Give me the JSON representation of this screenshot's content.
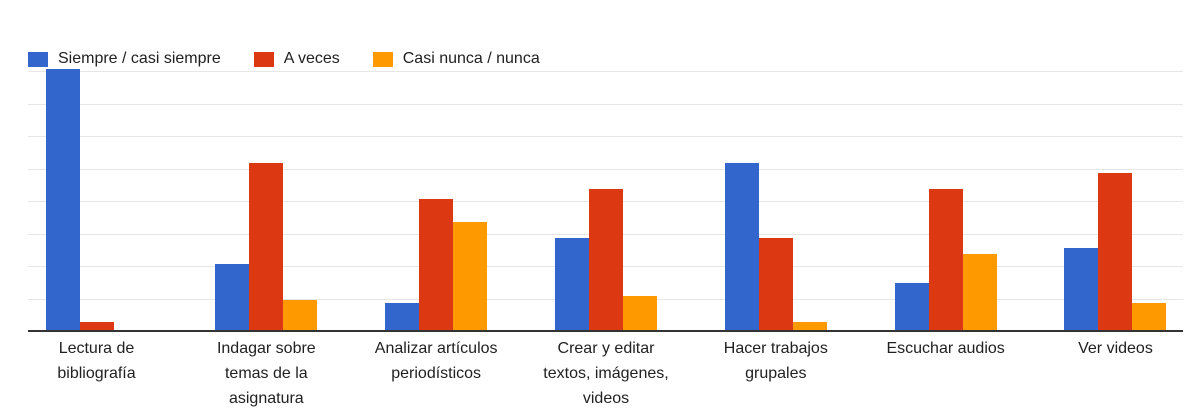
{
  "chart_data": {
    "type": "bar",
    "title": "",
    "xlabel": "",
    "ylabel": "",
    "ylim": [
      0,
      90
    ],
    "gridline_step": 10,
    "grid": true,
    "legend_position": "top-left",
    "background": "#ffffff",
    "gridline_color": "#e6e6e6",
    "axis_color": "#333333",
    "text_color": "#212121",
    "categories": [
      "Lectura de bibliografía",
      "Indagar sobre temas de la asignatura",
      "Analizar artículos periodísticos",
      "Crear y editar textos, imágenes, videos",
      "Hacer trabajos grupales",
      "Escuchar audios",
      "Ver videos"
    ],
    "categories_wrapped": [
      "Lectura de\nbibliografía",
      "Indagar sobre\ntemas de la\nasignatura",
      "Analizar artículos\nperiodísticos",
      "Crear y editar\ntextos, imágenes,\nvideos",
      "Hacer trabajos\ngrupales",
      "Escuchar audios",
      "Ver videos"
    ],
    "series": [
      {
        "name": "Siempre / casi siempre",
        "color": "#3366CC",
        "values": [
          81,
          21,
          9,
          29,
          52,
          15,
          26
        ]
      },
      {
        "name": "A veces",
        "color": "#DC3912",
        "values": [
          3,
          52,
          41,
          44,
          29,
          44,
          49
        ]
      },
      {
        "name": "Casi nunca / nunca",
        "color": "#FF9900",
        "values": [
          0,
          10,
          34,
          11,
          3,
          24,
          9
        ]
      }
    ]
  }
}
